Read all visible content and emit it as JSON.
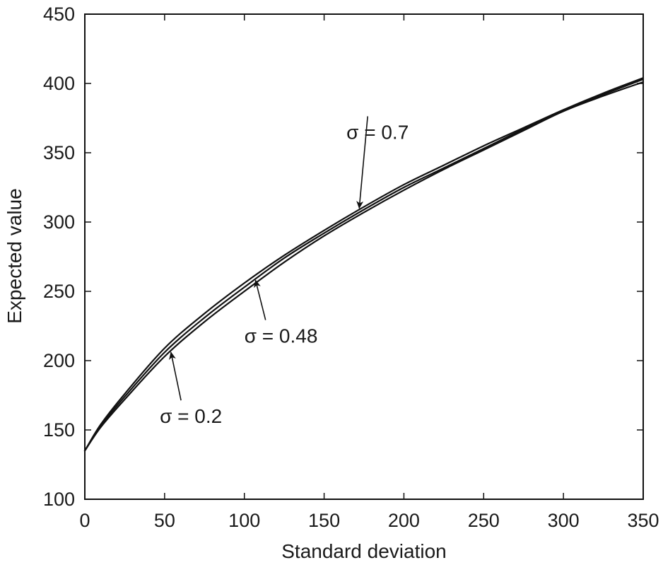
{
  "chart_data": {
    "type": "line",
    "title": "",
    "xlabel": "Standard deviation",
    "ylabel": "Expected value",
    "xlim": [
      0,
      350
    ],
    "ylim": [
      100,
      450
    ],
    "x_ticks": [
      "0",
      "50",
      "100",
      "150",
      "200",
      "250",
      "300",
      "350"
    ],
    "y_ticks": [
      "100",
      "150",
      "200",
      "250",
      "300",
      "350",
      "400",
      "450"
    ],
    "grid": false,
    "legend": "none",
    "series": [
      {
        "x": [
          0,
          10,
          25,
          50,
          75,
          100,
          125,
          150,
          175,
          200,
          225,
          250,
          275,
          300,
          325,
          350
        ],
        "y": [
          135,
          152,
          172,
          203,
          228,
          250,
          271,
          290,
          307,
          323,
          338,
          352,
          366,
          380,
          391,
          401
        ]
      },
      {
        "x": [
          0,
          10,
          25,
          50,
          75,
          100,
          125,
          150,
          175,
          200,
          225,
          250,
          275,
          300,
          325,
          350
        ],
        "y": [
          135,
          153,
          174,
          206,
          231,
          253,
          274,
          292,
          309,
          325,
          339,
          353,
          367,
          380,
          392,
          403
        ]
      },
      {
        "x": [
          0,
          10,
          25,
          50,
          75,
          100,
          125,
          150,
          175,
          200,
          225,
          250,
          275,
          300,
          325,
          350
        ],
        "y": [
          135,
          154,
          176,
          209,
          234,
          256,
          276,
          294,
          311,
          327,
          341,
          355,
          368,
          381,
          393,
          404
        ]
      }
    ],
    "annotations": [
      {
        "text": "σ = 0.2",
        "point": [
          54,
          206
        ],
        "text_at": [
          47,
          155
        ]
      },
      {
        "text": "σ = 0.48",
        "point": [
          107,
          258
        ],
        "text_at": [
          100,
          213
        ]
      },
      {
        "text": "σ = 0.7",
        "point": [
          172,
          310
        ],
        "text_at": [
          164,
          360
        ]
      }
    ],
    "line_color": "#111111"
  }
}
